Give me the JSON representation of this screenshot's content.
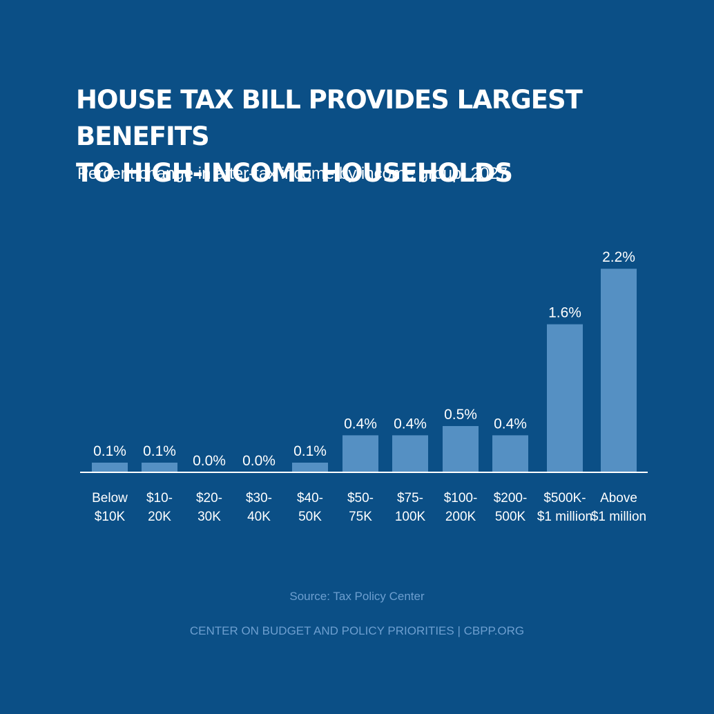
{
  "header": {
    "title_line1": "HOUSE TAX BILL PROVIDES LARGEST BENEFITS",
    "title_line2": "TO HIGH-INCOME HOUSEHOLDS",
    "subtitle": "Percent change in after-tax income by income group, 2027"
  },
  "chart_data": {
    "type": "bar",
    "title": "HOUSE TAX BILL PROVIDES LARGEST BENEFITS TO HIGH-INCOME HOUSEHOLDS",
    "subtitle": "Percent change in after-tax income by income group, 2027",
    "categories": [
      [
        "Below",
        "$10K"
      ],
      [
        "$10-",
        "20K"
      ],
      [
        "$20-",
        "30K"
      ],
      [
        "$30-",
        "40K"
      ],
      [
        "$40-",
        "50K"
      ],
      [
        "$50-",
        "75K"
      ],
      [
        "$75-",
        "100K"
      ],
      [
        "$100-",
        "200K"
      ],
      [
        "$200-",
        "500K"
      ],
      [
        "$500K-",
        "$1 million"
      ],
      [
        "Above",
        "$1 million"
      ]
    ],
    "values": [
      0.1,
      0.1,
      0.0,
      0.0,
      0.1,
      0.4,
      0.4,
      0.5,
      0.4,
      1.6,
      2.2
    ],
    "value_labels": [
      "0.1%",
      "0.1%",
      "0.0%",
      "0.0%",
      "0.1%",
      "0.4%",
      "0.4%",
      "0.5%",
      "0.4%",
      "1.6%",
      "2.2%"
    ],
    "xlabel": "",
    "ylabel": "",
    "ylim": [
      0,
      2.2
    ],
    "grid": false,
    "bar_color": "#5590c3",
    "baseline_color": "#ffffff"
  },
  "footer": {
    "source": "Source: Tax Policy Center",
    "org": "CENTER ON BUDGET AND POLICY PRIORITIES | CBPP.ORG"
  }
}
